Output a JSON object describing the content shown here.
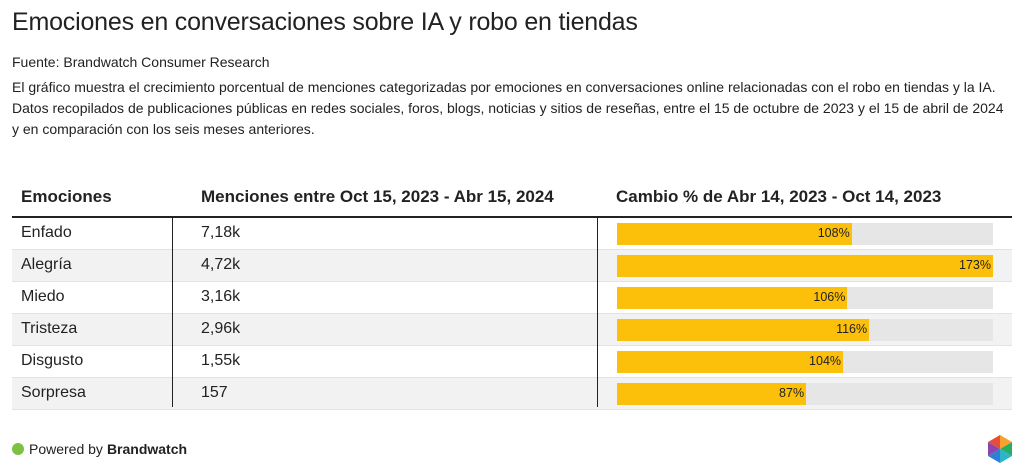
{
  "header": {
    "title": "Emociones en conversaciones sobre IA y robo en tiendas",
    "source": "Fuente: Brandwatch Consumer Research",
    "description_line1": "El gráfico muestra el crecimiento porcentual de menciones categorizadas por emociones en conversaciones online relacionadas con el robo en tiendas y la IA.",
    "description_line2": "Datos recopilados de publicaciones públicas en redes sociales, foros, blogs, noticias y sitios de reseñas, entre el 15 de octubre de 2023 y el 15 de abril de 2024 y en comparación con los seis meses anteriores."
  },
  "columns": {
    "emotion": "Emociones",
    "mentions": "Menciones entre Oct 15, 2023 - Abr 15, 2024",
    "change": "Cambio % de Abr 14, 2023 - Oct 14, 2023"
  },
  "chart_data": {
    "type": "table",
    "bar_max": 173,
    "rows": [
      {
        "emotion": "Enfado",
        "mentions": "7,18k",
        "change": 108,
        "change_label": "108%"
      },
      {
        "emotion": "Alegría",
        "mentions": "4,72k",
        "change": 173,
        "change_label": "173%"
      },
      {
        "emotion": "Miedo",
        "mentions": "3,16k",
        "change": 106,
        "change_label": "106%"
      },
      {
        "emotion": "Tristeza",
        "mentions": "2,96k",
        "change": 116,
        "change_label": "116%"
      },
      {
        "emotion": "Disgusto",
        "mentions": "1,55k",
        "change": 104,
        "change_label": "104%"
      },
      {
        "emotion": "Sorpresa",
        "mentions": "157",
        "change": 87,
        "change_label": "87%"
      }
    ]
  },
  "colors": {
    "bar": "#fcbf0a",
    "track": "#e6e6e6",
    "status_dot": "#7cc242"
  },
  "footer": {
    "powered_by": "Powered by",
    "brand": "Brandwatch"
  },
  "icons": {
    "footer_dot": "green-dot-icon",
    "logo": "brandwatch-hexagon-logo"
  }
}
